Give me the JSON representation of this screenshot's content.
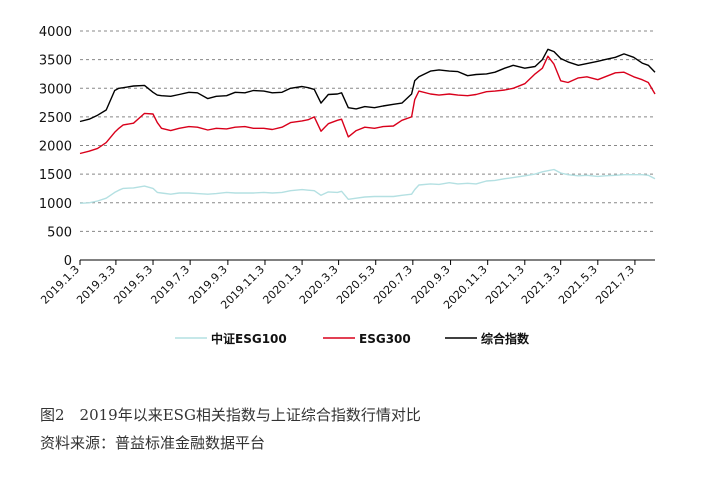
{
  "caption": {
    "figure_title": "图2　2019年以来ESG相关指数与上证综合指数行情对比",
    "source": "资料来源：普益标准金融数据平台"
  },
  "colors": {
    "esg100": "#b4e0e2",
    "esg300": "#d9001b",
    "composite": "#000000",
    "grid": "#888888",
    "axis": "#000000"
  },
  "chart_data": {
    "type": "line",
    "title": "",
    "xlabel": "",
    "ylabel": "",
    "ylim": [
      0,
      4000
    ],
    "y_ticks": [
      "0",
      "500",
      "1000",
      "1500",
      "2000",
      "2500",
      "3000",
      "3500",
      "4000"
    ],
    "x_ticks": [
      "2019.1.3",
      "2019.3.3",
      "2019.5.3",
      "2019.7.3",
      "2019.9.3",
      "2019.11.3",
      "2020.1.3",
      "2020.3.3",
      "2020.5.3",
      "2020.7.3",
      "2020.9.3",
      "2020.11.3",
      "2021.1.3",
      "2021.3.3",
      "2021.5.3",
      "2021.7.3"
    ],
    "grid": true,
    "grid_axis": "y",
    "grid_style": "dashed",
    "legend_position": "bottom",
    "x": [
      "2019-01-03",
      "2019-01-18",
      "2019-02-01",
      "2019-02-15",
      "2019-03-01",
      "2019-03-08",
      "2019-03-15",
      "2019-04-01",
      "2019-04-19",
      "2019-05-03",
      "2019-05-10",
      "2019-05-17",
      "2019-06-01",
      "2019-06-15",
      "2019-07-01",
      "2019-07-15",
      "2019-08-01",
      "2019-08-15",
      "2019-09-01",
      "2019-09-15",
      "2019-10-01",
      "2019-10-15",
      "2019-11-01",
      "2019-11-15",
      "2019-12-01",
      "2019-12-15",
      "2020-01-03",
      "2020-01-13",
      "2020-01-23",
      "2020-02-03",
      "2020-02-15",
      "2020-03-01",
      "2020-03-08",
      "2020-03-19",
      "2020-04-01",
      "2020-04-15",
      "2020-05-01",
      "2020-05-15",
      "2020-06-01",
      "2020-06-15",
      "2020-07-01",
      "2020-07-06",
      "2020-07-13",
      "2020-08-01",
      "2020-08-15",
      "2020-09-01",
      "2020-09-15",
      "2020-10-01",
      "2020-10-15",
      "2020-11-01",
      "2020-11-15",
      "2020-12-01",
      "2020-12-15",
      "2021-01-03",
      "2021-01-20",
      "2021-02-01",
      "2021-02-10",
      "2021-02-20",
      "2021-03-03",
      "2021-03-15",
      "2021-04-01",
      "2021-04-15",
      "2021-05-03",
      "2021-05-15",
      "2021-06-01",
      "2021-06-15",
      "2021-07-01",
      "2021-07-15",
      "2021-07-25",
      "2021-08-05"
    ],
    "series": [
      {
        "name": "中证ESG100",
        "color": "#b4e0e2",
        "values": [
          990,
          1000,
          1030,
          1080,
          1180,
          1220,
          1250,
          1260,
          1290,
          1250,
          1180,
          1170,
          1150,
          1170,
          1170,
          1160,
          1150,
          1160,
          1180,
          1170,
          1170,
          1170,
          1180,
          1170,
          1180,
          1210,
          1230,
          1220,
          1210,
          1130,
          1190,
          1180,
          1200,
          1060,
          1080,
          1100,
          1110,
          1110,
          1110,
          1130,
          1150,
          1230,
          1310,
          1330,
          1320,
          1350,
          1330,
          1340,
          1330,
          1380,
          1390,
          1420,
          1440,
          1470,
          1500,
          1540,
          1560,
          1580,
          1520,
          1490,
          1470,
          1480,
          1460,
          1470,
          1480,
          1490,
          1490,
          1490,
          1480,
          1420
        ]
      },
      {
        "name": "ESG300",
        "color": "#d9001b",
        "values": [
          1860,
          1900,
          1950,
          2050,
          2230,
          2300,
          2360,
          2390,
          2560,
          2550,
          2400,
          2300,
          2260,
          2300,
          2330,
          2320,
          2270,
          2300,
          2290,
          2320,
          2330,
          2300,
          2300,
          2280,
          2320,
          2400,
          2430,
          2450,
          2500,
          2250,
          2380,
          2440,
          2460,
          2150,
          2260,
          2320,
          2300,
          2330,
          2340,
          2440,
          2500,
          2800,
          2950,
          2900,
          2880,
          2900,
          2880,
          2870,
          2890,
          2940,
          2950,
          2970,
          3000,
          3080,
          3250,
          3350,
          3560,
          3420,
          3130,
          3100,
          3180,
          3200,
          3150,
          3200,
          3270,
          3280,
          3200,
          3150,
          3100,
          2900
        ]
      },
      {
        "name": "综合指数",
        "color": "#000000",
        "values": [
          2420,
          2460,
          2530,
          2620,
          2960,
          3000,
          3010,
          3040,
          3050,
          2930,
          2880,
          2870,
          2860,
          2890,
          2930,
          2920,
          2820,
          2860,
          2870,
          2930,
          2920,
          2960,
          2950,
          2920,
          2930,
          3000,
          3030,
          3010,
          2980,
          2740,
          2890,
          2900,
          2920,
          2660,
          2640,
          2680,
          2660,
          2690,
          2720,
          2740,
          2900,
          3130,
          3200,
          3300,
          3320,
          3300,
          3290,
          3220,
          3240,
          3250,
          3280,
          3350,
          3400,
          3350,
          3380,
          3500,
          3680,
          3640,
          3520,
          3460,
          3400,
          3430,
          3470,
          3500,
          3540,
          3600,
          3540,
          3440,
          3400,
          3280
        ]
      }
    ]
  },
  "legend": [
    {
      "key": "esg100",
      "label": "中证ESG100"
    },
    {
      "key": "esg300",
      "label": "ESG300"
    },
    {
      "key": "composite",
      "label": "综合指数"
    }
  ]
}
